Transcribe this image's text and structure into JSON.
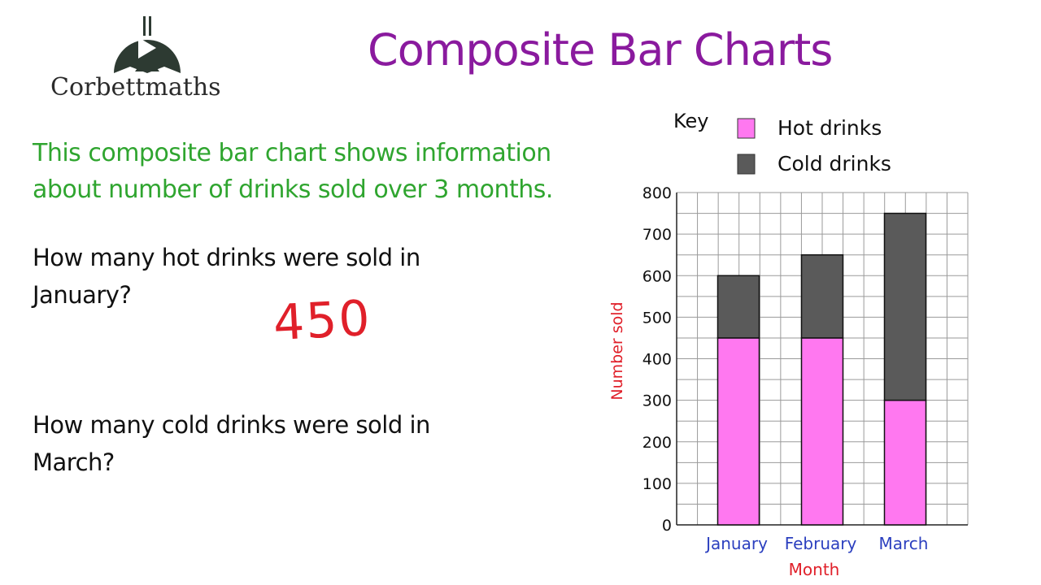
{
  "brand": {
    "name": "Corbettmaths"
  },
  "title": "Composite Bar Charts",
  "intro": "This composite bar chart shows information about number of drinks sold over 3 months.",
  "questions": [
    {
      "text": "How many hot drinks were sold in January?",
      "answer": "450"
    },
    {
      "text": "How many cold drinks were sold in March?",
      "answer": ""
    }
  ],
  "chart_data": {
    "type": "bar",
    "stacked": true,
    "categories": [
      "January",
      "February",
      "March"
    ],
    "series": [
      {
        "name": "Hot drinks",
        "values": [
          450,
          450,
          300
        ],
        "color": "#ff78f0"
      },
      {
        "name": "Cold drinks",
        "values": [
          150,
          200,
          450
        ],
        "color": "#5a5a5a"
      }
    ],
    "xlabel": "Month",
    "ylabel": "Number sold",
    "ylim": [
      0,
      800
    ],
    "yticks": [
      0,
      100,
      200,
      300,
      400,
      500,
      600,
      700,
      800
    ],
    "grid": true,
    "legend": {
      "title": "Key",
      "position": "top-right"
    },
    "colors": {
      "axis_label": "#e0202a",
      "category_label": "#2b3fbf"
    }
  }
}
